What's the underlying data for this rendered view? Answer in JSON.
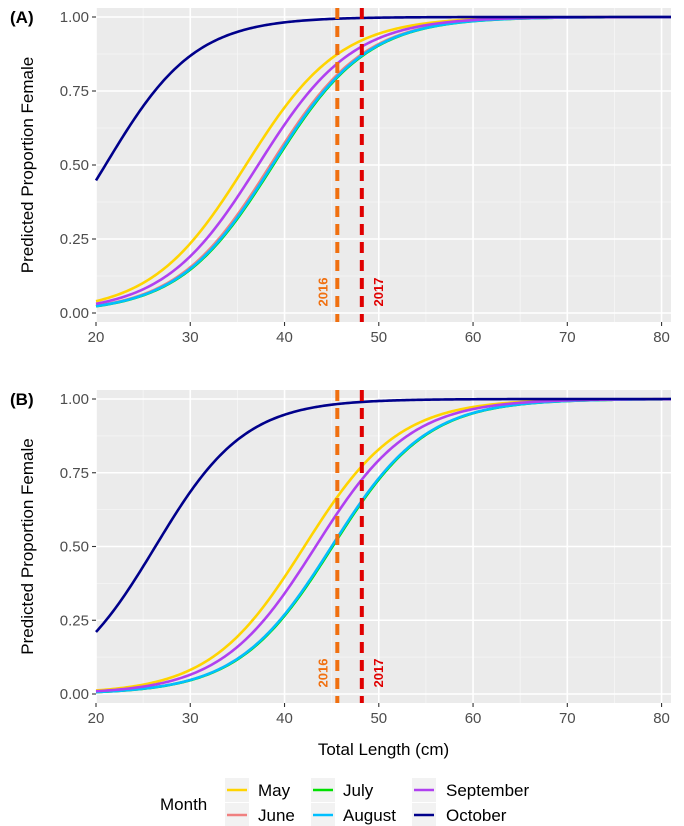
{
  "chart_data": [
    {
      "type": "line",
      "panel_label": "(A)",
      "xlabel": "",
      "ylabel": "Predicted Proportion Female",
      "xlim": [
        20,
        81
      ],
      "ylim": [
        0,
        1
      ],
      "x_ticks": [
        20,
        30,
        40,
        50,
        60,
        70,
        80
      ],
      "y_ticks": [
        "0.00",
        "0.25",
        "0.50",
        "0.75",
        "1.00"
      ],
      "grid": true,
      "curve_model": "logistic",
      "series": [
        {
          "name": "May",
          "color": "#FFD400",
          "midpoint": 35.9,
          "slope": 0.2
        },
        {
          "name": "June",
          "color": "#F08080",
          "midpoint": 38.5,
          "slope": 0.2
        },
        {
          "name": "July",
          "color": "#00E000",
          "midpoint": 38.8,
          "slope": 0.2
        },
        {
          "name": "August",
          "color": "#00BFFF",
          "midpoint": 38.7,
          "slope": 0.2
        },
        {
          "name": "September",
          "color": "#B040F0",
          "midpoint": 37.2,
          "slope": 0.2
        },
        {
          "name": "October",
          "color": "#00008B",
          "midpoint": 21.0,
          "slope": 0.21
        }
      ],
      "vlines": [
        {
          "label": "2016",
          "x": 45.6,
          "color": "#F07010"
        },
        {
          "label": "2017",
          "x": 48.2,
          "color": "#E00000"
        }
      ]
    },
    {
      "type": "line",
      "panel_label": "(B)",
      "xlabel": "Total Length (cm)",
      "ylabel": "Predicted Proportion Female",
      "xlim": [
        20,
        81
      ],
      "ylim": [
        0,
        1
      ],
      "x_ticks": [
        20,
        30,
        40,
        50,
        60,
        70,
        80
      ],
      "y_ticks": [
        "0.00",
        "0.25",
        "0.50",
        "0.75",
        "1.00"
      ],
      "grid": true,
      "curve_model": "logistic",
      "series": [
        {
          "name": "May",
          "color": "#FFD400",
          "midpoint": 42.1,
          "slope": 0.2
        },
        {
          "name": "June",
          "color": "#F08080",
          "midpoint": 45.0,
          "slope": 0.2
        },
        {
          "name": "July",
          "color": "#00E000",
          "midpoint": 45.1,
          "slope": 0.2
        },
        {
          "name": "August",
          "color": "#00BFFF",
          "midpoint": 45.0,
          "slope": 0.2
        },
        {
          "name": "September",
          "color": "#B040F0",
          "midpoint": 43.3,
          "slope": 0.2
        },
        {
          "name": "October",
          "color": "#00008B",
          "midpoint": 26.3,
          "slope": 0.21
        }
      ],
      "vlines": [
        {
          "label": "2016",
          "x": 45.6,
          "color": "#F07010"
        },
        {
          "label": "2017",
          "x": 48.2,
          "color": "#E00000"
        }
      ]
    }
  ],
  "legend": {
    "title": "Month",
    "placement": "bottom",
    "entries": [
      {
        "name": "May",
        "color": "#FFD400"
      },
      {
        "name": "June",
        "color": "#F08080"
      },
      {
        "name": "July",
        "color": "#00E000"
      },
      {
        "name": "August",
        "color": "#00BFFF"
      },
      {
        "name": "September",
        "color": "#B040F0"
      },
      {
        "name": "October",
        "color": "#00008B"
      }
    ]
  }
}
